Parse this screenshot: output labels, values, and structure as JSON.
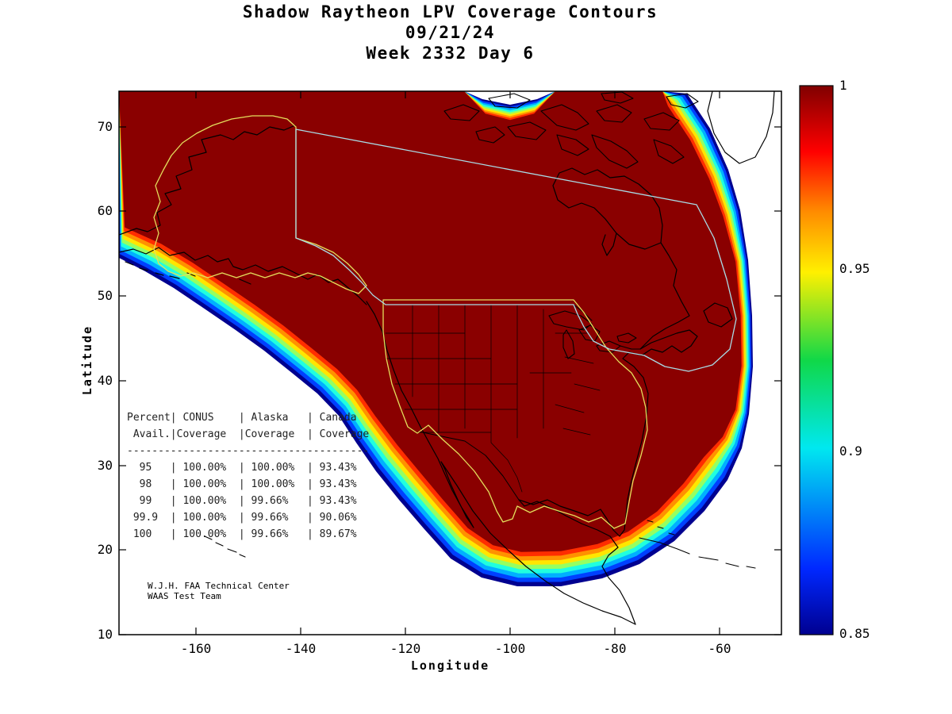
{
  "title": {
    "line1": "Shadow Raytheon LPV Coverage Contours",
    "line2": "09/21/24",
    "line3": "Week 2332 Day 6"
  },
  "axes": {
    "xlabel": "Longitude",
    "ylabel": "Latitude",
    "x_tick_labels": [
      "-160",
      "-140",
      "-120",
      "-100",
      "-80",
      "-60"
    ],
    "y_tick_labels": [
      "70",
      "60",
      "50",
      "40",
      "30",
      "20",
      "10"
    ]
  },
  "colorbar": {
    "tick_labels": [
      "1",
      "0.95",
      "0.9",
      "0.85"
    ]
  },
  "coverage_table": {
    "display_lines": [
      "Percent| CONUS    | Alaska   | Canada",
      " Avail.|Coverage  |Coverage  | Coverage",
      "---------------------------------------",
      "  95   | 100.00%  | 100.00%  | 93.43%",
      "  98   | 100.00%  | 100.00%  | 93.43%",
      "  99   | 100.00%  | 99.66%   | 93.43%",
      " 99.9  | 100.00%  | 99.66%   | 90.06%",
      " 100   | 100.00%  | 99.66%   | 89.67%"
    ]
  },
  "credit": {
    "line1": "W.J.H. FAA Technical Center",
    "line2": "WAAS Test Team"
  },
  "chart_data": {
    "type": "heatmap",
    "subtype": "filled_contour_map",
    "title": "Shadow Raytheon LPV Coverage Contours",
    "date": "09/21/24",
    "gps_week": "Week 2332 Day 6",
    "xlabel": "Longitude",
    "ylabel": "Latitude",
    "xlim": [
      -175,
      -48
    ],
    "ylim": [
      10,
      74
    ],
    "x_ticks": [
      -160,
      -140,
      -120,
      -100,
      -80,
      -60
    ],
    "y_ticks": [
      10,
      20,
      30,
      40,
      50,
      60,
      70
    ],
    "grid": false,
    "legend_position": "right-colorbar",
    "colorbar": {
      "min": 0.85,
      "max": 1.0,
      "ticks": [
        1,
        0.95,
        0.9,
        0.85
      ],
      "colormap": "jet"
    },
    "contour_levels": [
      0.85,
      0.875,
      0.9,
      0.925,
      0.95,
      0.975,
      1.0
    ],
    "contour_colors": [
      "#000090",
      "#0040FF",
      "#00B0FF",
      "#20FFDF",
      "#95FF62",
      "#FFE600",
      "#FF9100",
      "#FF2D00",
      "#8A0000"
    ],
    "boundary_colors": {
      "conus_alaska": "#E4DF5C",
      "canada": "#A9DCE6"
    },
    "availability_table": {
      "columns": [
        "Percent Avail.",
        "CONUS Coverage",
        "Alaska Coverage",
        "Canada Coverage"
      ],
      "rows": [
        [
          95,
          "100.00%",
          "100.00%",
          "93.43%"
        ],
        [
          98,
          "100.00%",
          "100.00%",
          "93.43%"
        ],
        [
          99,
          "100.00%",
          "99.66%",
          "93.43%"
        ],
        [
          99.9,
          "100.00%",
          "99.66%",
          "90.06%"
        ],
        [
          100,
          "100.00%",
          "99.66%",
          "89.67%"
        ]
      ]
    },
    "description": "LPV availability contours (0.85 to 1.0, jet colormap) over North America; dark red (~1.0) covers CONUS, Alaska and Canada with rainbow fall-off bands along the Pacific southwest edge, Mexico/Caribbean southern edge and the northeast Atlantic corner."
  }
}
